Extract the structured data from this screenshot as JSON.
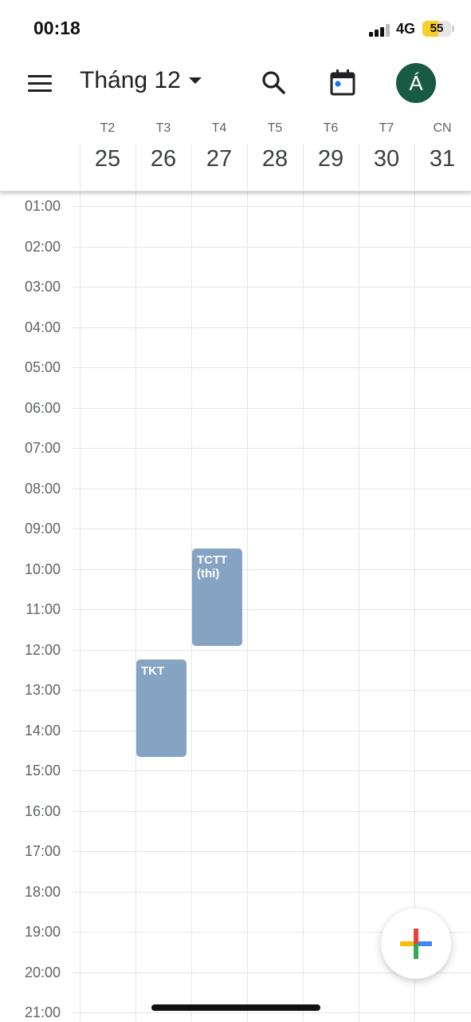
{
  "status_bar": {
    "time": "00:18",
    "network": "4G",
    "battery": "55",
    "battery_level": 0.55
  },
  "app_bar": {
    "month_label": "Tháng 12",
    "avatar_letter": "Á",
    "icons": [
      "menu-icon",
      "dropdown-caret-icon",
      "search-icon",
      "today-calendar-icon"
    ]
  },
  "days": [
    {
      "dow": "T2",
      "date": "25"
    },
    {
      "dow": "T3",
      "date": "26"
    },
    {
      "dow": "T4",
      "date": "27"
    },
    {
      "dow": "T5",
      "date": "28"
    },
    {
      "dow": "T6",
      "date": "29"
    },
    {
      "dow": "T7",
      "date": "30"
    },
    {
      "dow": "CN",
      "date": "31"
    }
  ],
  "hours": [
    "01:00",
    "02:00",
    "03:00",
    "04:00",
    "05:00",
    "06:00",
    "07:00",
    "08:00",
    "09:00",
    "10:00",
    "11:00",
    "12:00",
    "13:00",
    "14:00",
    "15:00",
    "16:00",
    "17:00",
    "18:00",
    "19:00",
    "20:00",
    "21:00"
  ],
  "events": [
    {
      "title": "TCTT (thi)",
      "day": "T4",
      "start": "09:30",
      "end": "11:55"
    },
    {
      "title": "TKT",
      "day": "T3",
      "start": "12:15",
      "end": "14:40"
    }
  ],
  "colors": {
    "event": "#85a3c2",
    "avatar": "#185a43",
    "today_dot": "#1a73e8",
    "fab_plus": [
      "#ea4335",
      "#4285f4",
      "#34a853",
      "#fbbc04"
    ]
  }
}
